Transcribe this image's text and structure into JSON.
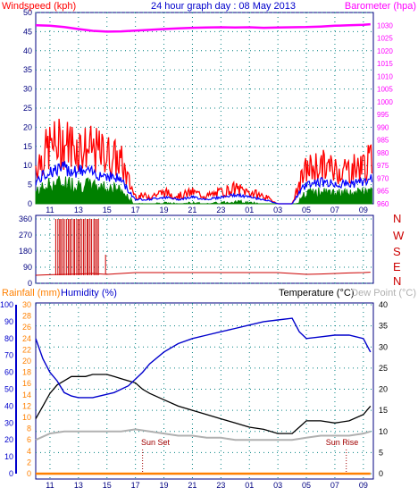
{
  "header": {
    "title": "24 hour graph day : 08 May 2013",
    "left_label": "Windspeed (kph)",
    "right_label": "Barometer (hpa)"
  },
  "wind_dir_labels": [
    "N",
    "W",
    "S",
    "E",
    "N"
  ],
  "bottom_header": {
    "rainfall": "Rainfall (mm)",
    "humidity": "Humidity (%)",
    "temperature": "Temperature (°C)",
    "dewpoint": "Dew Point (°C)"
  },
  "markers": {
    "sunset": "Sun Set",
    "sunrise": "Sun Rise"
  },
  "colors": {
    "title": "#0000cc",
    "wind": "#ff0000",
    "gust": "#ff0000",
    "avgwind": "#0000ff",
    "green": "#008000",
    "baro": "#ff00ff",
    "winddir": "#cc0000",
    "humidity": "#0000cc",
    "temp": "#000000",
    "dew": "#b0b0b0",
    "rain": "#ff8000",
    "grid": "#008080",
    "axis": "#000080"
  },
  "x_tick_labels": [
    "11",
    "13",
    "15",
    "17",
    "19",
    "21",
    "23",
    "01",
    "03",
    "05",
    "07",
    "09"
  ],
  "chart_data": [
    {
      "type": "line",
      "title": "24 hour graph day : 08 May 2013",
      "series": [
        {
          "name": "Windspeed (kph)",
          "axis": "left",
          "ylim": [
            0,
            50
          ],
          "y_ticks": [
            0,
            5,
            10,
            15,
            20,
            25,
            30,
            35,
            40,
            45,
            50
          ],
          "x": [
            10,
            11,
            12,
            13,
            14,
            15,
            16,
            16.5,
            17,
            18,
            19,
            20,
            21,
            22,
            23,
            24,
            25,
            26,
            27,
            28,
            28.5,
            29,
            30,
            31,
            32,
            33,
            33.5
          ],
          "values": [
            10,
            15,
            16,
            15,
            14,
            13,
            11,
            6,
            2,
            2,
            3,
            2,
            3,
            2,
            3,
            4,
            3,
            2,
            0,
            0,
            5,
            9,
            10,
            9,
            9,
            10,
            11
          ]
        },
        {
          "name": "Barometer (hpa)",
          "axis": "right",
          "ylim": [
            960,
            1035
          ],
          "y_ticks": [
            960,
            965,
            970,
            975,
            980,
            985,
            990,
            995,
            1000,
            1005,
            1010,
            1015,
            1020,
            1025,
            1030
          ],
          "x": [
            10,
            11,
            12,
            13,
            14,
            15,
            16,
            17,
            18,
            19,
            20,
            21,
            22,
            23,
            24,
            25,
            26,
            27,
            28,
            29,
            30,
            31,
            32,
            33,
            33.5
          ],
          "values": [
            1030,
            1029.8,
            1029.3,
            1028.5,
            1027.8,
            1027.5,
            1027.6,
            1027.9,
            1028.2,
            1028.5,
            1028.8,
            1029,
            1029.1,
            1029.2,
            1029.1,
            1029.2,
            1029,
            1029.1,
            1029.2,
            1029.3,
            1029.5,
            1029.8,
            1030,
            1030.2,
            1030.4
          ]
        }
      ],
      "x_labels": [
        "11",
        "13",
        "15",
        "17",
        "19",
        "21",
        "23",
        "01",
        "03",
        "05",
        "07",
        "09"
      ]
    },
    {
      "type": "line",
      "series": [
        {
          "name": "Wind Direction",
          "ylim": [
            0,
            360
          ],
          "y_ticks": [
            0,
            90,
            180,
            270,
            360
          ],
          "x": [
            10,
            11,
            12,
            13,
            14,
            15,
            16,
            17,
            18,
            19,
            20,
            21,
            22,
            23,
            24,
            25,
            26,
            27,
            28,
            29,
            30,
            31,
            32,
            33,
            33.5
          ],
          "values": [
            45,
            48,
            50,
            52,
            55,
            50,
            55,
            60,
            60,
            60,
            60,
            60,
            60,
            60,
            60,
            60,
            60,
            60,
            55,
            50,
            52,
            55,
            58,
            60,
            62
          ]
        }
      ]
    },
    {
      "type": "line",
      "series": [
        {
          "name": "Humidity (%)",
          "axis": "left-outer",
          "ylim": [
            0,
            100
          ],
          "y_ticks": [
            0,
            10,
            20,
            30,
            40,
            50,
            60,
            70,
            80,
            90,
            100
          ],
          "x": [
            10,
            10.5,
            11,
            11.5,
            12,
            12.5,
            13,
            13.5,
            14,
            14.5,
            15,
            15.5,
            16,
            16.5,
            17,
            17.5,
            18,
            19,
            20,
            21,
            22,
            23,
            24,
            25,
            26,
            27,
            28,
            28.5,
            29,
            30,
            31,
            32,
            33,
            33.5
          ],
          "values": [
            80,
            68,
            60,
            55,
            48,
            46,
            45,
            45,
            45,
            46,
            47,
            48,
            50,
            52,
            56,
            60,
            65,
            72,
            77,
            80,
            82,
            84,
            86,
            88,
            90,
            91,
            92,
            84,
            80,
            81,
            82,
            82,
            80,
            72
          ]
        },
        {
          "name": "Rainfall (mm)",
          "axis": "left-inner",
          "ylim": [
            0,
            30
          ],
          "y_ticks": [
            0,
            2,
            4,
            6,
            8,
            10,
            12,
            14,
            16,
            18,
            20,
            22,
            24,
            26,
            28,
            30
          ],
          "x": [
            10,
            33.5
          ],
          "values": [
            0,
            0
          ]
        },
        {
          "name": "Temperature (°C)",
          "axis": "right",
          "ylim": [
            0,
            40
          ],
          "y_ticks": [
            0,
            5,
            10,
            15,
            20,
            25,
            30,
            35,
            40
          ],
          "x": [
            10,
            10.5,
            11,
            11.5,
            12,
            12.5,
            13,
            13.5,
            14,
            14.5,
            15,
            15.5,
            16,
            16.5,
            17,
            17.5,
            18,
            19,
            20,
            21,
            22,
            23,
            24,
            25,
            26,
            27,
            28,
            28.5,
            29,
            30,
            31,
            32,
            33,
            33.5
          ],
          "values": [
            13,
            16,
            19,
            21,
            22,
            23,
            23,
            23,
            23.5,
            23.5,
            23.5,
            23,
            22.5,
            22,
            21.5,
            20,
            19,
            17.5,
            16,
            15,
            14,
            13,
            12,
            11,
            10.5,
            9.5,
            9.5,
            11,
            12.5,
            12.5,
            12,
            12.5,
            14,
            16
          ]
        },
        {
          "name": "Dew Point (°C)",
          "axis": "right",
          "ylim": [
            0,
            40
          ],
          "x": [
            10,
            11,
            12,
            13,
            14,
            15,
            16,
            17,
            18,
            19,
            20,
            21,
            22,
            23,
            24,
            25,
            26,
            27,
            28,
            29,
            30,
            31,
            32,
            33,
            33.5
          ],
          "values": [
            8,
            9.5,
            10,
            10,
            10,
            10,
            10,
            10.5,
            10,
            9.5,
            9,
            9,
            8.5,
            8.5,
            8,
            8,
            8,
            8,
            8,
            8.5,
            9,
            9,
            9,
            9.5,
            10
          ]
        }
      ],
      "markers": [
        {
          "label": "Sun Set",
          "x": 17.5
        },
        {
          "label": "Sun Rise",
          "x": 31.8
        }
      ],
      "x_labels": [
        "11",
        "13",
        "15",
        "17",
        "19",
        "21",
        "23",
        "01",
        "03",
        "05",
        "07",
        "09"
      ]
    }
  ]
}
